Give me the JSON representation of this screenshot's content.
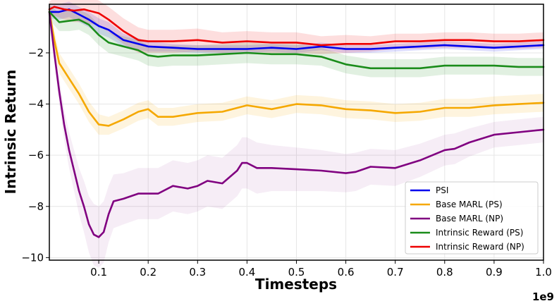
{
  "chart_data": {
    "type": "line",
    "xlabel": "Timesteps",
    "ylabel": "Intrinsic Return",
    "x_scale_label": "1e9",
    "xlim": [
      0.0,
      1.0
    ],
    "ylim": [
      -10.1,
      -0.1
    ],
    "x_ticks": [
      0.1,
      0.2,
      0.3,
      0.4,
      0.5,
      0.6,
      0.7,
      0.8,
      0.9,
      1.0
    ],
    "x_tick_labels": [
      "0.1",
      "0.2",
      "0.3",
      "0.4",
      "0.5",
      "0.6",
      "0.7",
      "0.8",
      "0.9",
      "1.0"
    ],
    "y_ticks": [
      -2,
      -4,
      -6,
      -8,
      -10
    ],
    "y_tick_labels": [
      "−2",
      "−4",
      "−6",
      "−8",
      "−10"
    ],
    "grid": true,
    "legend_position": "bottom-right",
    "series": [
      {
        "name": "PSI",
        "color": "#0000ee",
        "x": [
          0.0,
          0.02,
          0.04,
          0.06,
          0.08,
          0.1,
          0.12,
          0.15,
          0.2,
          0.25,
          0.3,
          0.35,
          0.4,
          0.45,
          0.5,
          0.55,
          0.6,
          0.65,
          0.7,
          0.75,
          0.8,
          0.85,
          0.9,
          0.95,
          1.0
        ],
        "y": [
          -0.4,
          -0.4,
          -0.3,
          -0.5,
          -0.7,
          -0.95,
          -1.1,
          -1.5,
          -1.75,
          -1.8,
          -1.85,
          -1.85,
          -1.85,
          -1.8,
          -1.85,
          -1.75,
          -1.85,
          -1.85,
          -1.8,
          -1.75,
          -1.7,
          -1.75,
          -1.8,
          -1.75,
          -1.7
        ],
        "band": [
          0.25,
          0.3,
          0.3,
          0.3,
          0.3,
          0.3,
          0.3,
          0.25,
          0.2,
          0.15,
          0.15,
          0.15,
          0.15,
          0.15,
          0.15,
          0.15,
          0.15,
          0.15,
          0.15,
          0.15,
          0.15,
          0.15,
          0.15,
          0.15,
          0.15
        ]
      },
      {
        "name": "Base MARL (PS)",
        "color": "#f5a800",
        "x": [
          0.0,
          0.01,
          0.02,
          0.04,
          0.06,
          0.08,
          0.1,
          0.12,
          0.15,
          0.18,
          0.2,
          0.22,
          0.25,
          0.3,
          0.35,
          0.4,
          0.45,
          0.5,
          0.55,
          0.6,
          0.65,
          0.7,
          0.75,
          0.8,
          0.85,
          0.9,
          0.95,
          1.0
        ],
        "y": [
          -0.4,
          -1.5,
          -2.4,
          -3.0,
          -3.6,
          -4.3,
          -4.8,
          -4.85,
          -4.6,
          -4.3,
          -4.2,
          -4.5,
          -4.5,
          -4.35,
          -4.3,
          -4.05,
          -4.2,
          -4.0,
          -4.05,
          -4.2,
          -4.25,
          -4.35,
          -4.3,
          -4.15,
          -4.15,
          -4.05,
          -4.0,
          -3.95
        ],
        "band": [
          0.3,
          0.35,
          0.4,
          0.4,
          0.4,
          0.4,
          0.4,
          0.35,
          0.35,
          0.35,
          0.35,
          0.35,
          0.35,
          0.35,
          0.35,
          0.35,
          0.35,
          0.35,
          0.35,
          0.35,
          0.35,
          0.35,
          0.35,
          0.35,
          0.35,
          0.35,
          0.35,
          0.35
        ]
      },
      {
        "name": "Base MARL (NP)",
        "color": "#800080",
        "x": [
          0.0,
          0.01,
          0.02,
          0.03,
          0.04,
          0.05,
          0.06,
          0.07,
          0.08,
          0.09,
          0.1,
          0.11,
          0.12,
          0.13,
          0.15,
          0.18,
          0.2,
          0.22,
          0.25,
          0.28,
          0.3,
          0.32,
          0.35,
          0.38,
          0.39,
          0.4,
          0.42,
          0.45,
          0.5,
          0.55,
          0.6,
          0.62,
          0.65,
          0.7,
          0.75,
          0.8,
          0.82,
          0.85,
          0.9,
          0.95,
          1.0
        ],
        "y": [
          -0.4,
          -2.0,
          -3.5,
          -4.8,
          -5.8,
          -6.6,
          -7.4,
          -8.0,
          -8.7,
          -9.1,
          -9.2,
          -9.0,
          -8.3,
          -7.8,
          -7.7,
          -7.5,
          -7.5,
          -7.5,
          -7.2,
          -7.3,
          -7.2,
          -7.0,
          -7.1,
          -6.6,
          -6.3,
          -6.3,
          -6.5,
          -6.5,
          -6.55,
          -6.6,
          -6.7,
          -6.65,
          -6.45,
          -6.5,
          -6.2,
          -5.8,
          -5.75,
          -5.5,
          -5.2,
          -5.1,
          -5.0
        ],
        "band": [
          0.3,
          0.4,
          0.5,
          0.6,
          0.7,
          0.8,
          0.9,
          1.0,
          1.1,
          1.2,
          1.2,
          1.2,
          1.1,
          1.05,
          1.0,
          1.0,
          1.0,
          1.0,
          1.0,
          1.0,
          1.0,
          1.0,
          1.0,
          1.0,
          1.0,
          1.0,
          1.0,
          0.9,
          0.85,
          0.8,
          0.75,
          0.75,
          0.7,
          0.7,
          0.65,
          0.6,
          0.6,
          0.55,
          0.5,
          0.5,
          0.5
        ]
      },
      {
        "name": "Intrinsic Reward (PS)",
        "color": "#1a8c1a",
        "x": [
          0.0,
          0.02,
          0.04,
          0.06,
          0.08,
          0.1,
          0.12,
          0.15,
          0.18,
          0.2,
          0.22,
          0.25,
          0.3,
          0.35,
          0.4,
          0.45,
          0.5,
          0.55,
          0.6,
          0.65,
          0.7,
          0.75,
          0.8,
          0.85,
          0.9,
          0.95,
          1.0
        ],
        "y": [
          -0.4,
          -0.8,
          -0.75,
          -0.7,
          -0.9,
          -1.3,
          -1.6,
          -1.75,
          -1.9,
          -2.1,
          -2.15,
          -2.1,
          -2.1,
          -2.05,
          -2.0,
          -2.05,
          -2.05,
          -2.15,
          -2.45,
          -2.6,
          -2.6,
          -2.6,
          -2.5,
          -2.5,
          -2.5,
          -2.55,
          -2.55
        ],
        "band": [
          0.3,
          0.35,
          0.4,
          0.4,
          0.4,
          0.4,
          0.4,
          0.4,
          0.4,
          0.4,
          0.4,
          0.4,
          0.4,
          0.4,
          0.4,
          0.4,
          0.4,
          0.35,
          0.35,
          0.35,
          0.35,
          0.35,
          0.35,
          0.35,
          0.35,
          0.35,
          0.35
        ]
      },
      {
        "name": "Intrinsic Reward (NP)",
        "color": "#ee0000",
        "x": [
          0.0,
          0.01,
          0.03,
          0.05,
          0.07,
          0.08,
          0.1,
          0.12,
          0.15,
          0.18,
          0.2,
          0.25,
          0.3,
          0.35,
          0.4,
          0.45,
          0.5,
          0.55,
          0.6,
          0.65,
          0.7,
          0.75,
          0.8,
          0.85,
          0.9,
          0.95,
          1.0
        ],
        "y": [
          -0.3,
          -0.2,
          -0.3,
          -0.35,
          -0.3,
          -0.35,
          -0.45,
          -0.7,
          -1.15,
          -1.5,
          -1.55,
          -1.55,
          -1.5,
          -1.6,
          -1.55,
          -1.6,
          -1.6,
          -1.7,
          -1.65,
          -1.65,
          -1.55,
          -1.55,
          -1.5,
          -1.5,
          -1.55,
          -1.55,
          -1.5
        ],
        "band": [
          0.3,
          0.35,
          0.4,
          0.45,
          0.5,
          0.5,
          0.5,
          0.5,
          0.5,
          0.5,
          0.45,
          0.45,
          0.45,
          0.4,
          0.4,
          0.4,
          0.4,
          0.35,
          0.35,
          0.3,
          0.3,
          0.3,
          0.3,
          0.3,
          0.3,
          0.3,
          0.3
        ]
      }
    ]
  }
}
